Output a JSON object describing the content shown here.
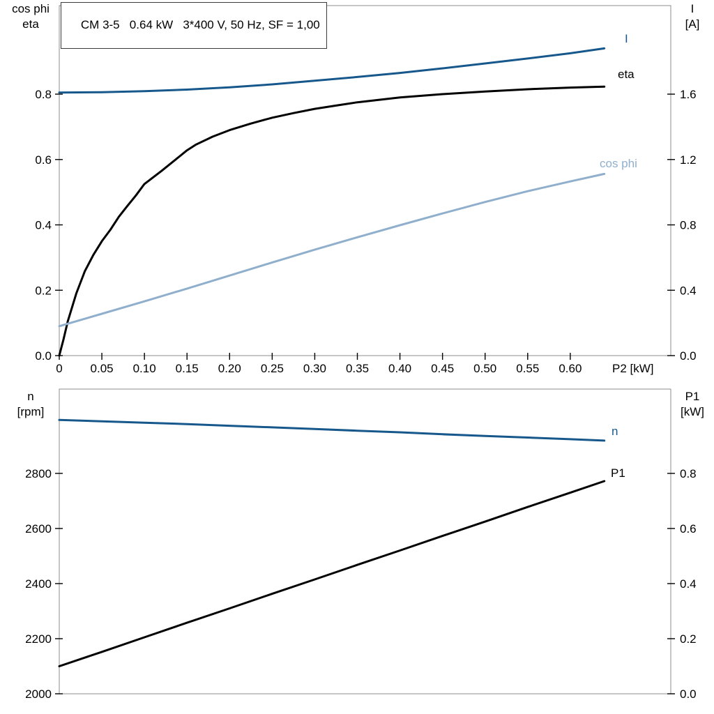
{
  "colors": {
    "dark_blue": "#17588c",
    "light_blue": "#8fafcc",
    "black": "#000000",
    "axis_border": "#8c8c8c",
    "tick": "#000000",
    "background": "#ffffff"
  },
  "chart_data": [
    {
      "type": "line",
      "title": "CM 3-5   0.64 kW   3*400 V, 50 Hz, SF = 1,00",
      "xlabel": "P2 [kW]",
      "xlim": [
        0,
        0.718
      ],
      "x_ticks": {
        "values": [
          0,
          0.05,
          0.1,
          0.15,
          0.2,
          0.25,
          0.3,
          0.35,
          0.4,
          0.45,
          0.5,
          0.55,
          0.6
        ],
        "labels": [
          "0",
          "0.05",
          "0.10",
          "0.15",
          "0.20",
          "0.25",
          "0.30",
          "0.35",
          "0.40",
          "0.45",
          "0.50",
          "0.55",
          "0.60"
        ]
      },
      "left_axis": {
        "label_lines": [
          "cos phi",
          "eta"
        ],
        "lim": [
          0,
          1.071
        ],
        "ticks": {
          "values": [
            0,
            0.2,
            0.4,
            0.6,
            0.8
          ],
          "labels": [
            "0.0",
            "0.2",
            "0.4",
            "0.6",
            "0.8"
          ]
        }
      },
      "right_axis": {
        "label_lines": [
          "I",
          "[A]"
        ],
        "lim": [
          0,
          2.142
        ],
        "ticks": {
          "values": [
            0,
            0.4,
            0.8,
            1.2,
            1.6
          ],
          "labels": [
            "0.0",
            "0.4",
            "0.8",
            "1.2",
            "1.6"
          ]
        }
      },
      "series": [
        {
          "name": "I",
          "axis": "right",
          "color": "dark_blue",
          "points": [
            [
              0,
              1.61
            ],
            [
              0.05,
              1.612
            ],
            [
              0.1,
              1.618
            ],
            [
              0.15,
              1.628
            ],
            [
              0.2,
              1.642
            ],
            [
              0.25,
              1.66
            ],
            [
              0.3,
              1.682
            ],
            [
              0.35,
              1.705
            ],
            [
              0.4,
              1.73
            ],
            [
              0.45,
              1.758
            ],
            [
              0.5,
              1.788
            ],
            [
              0.55,
              1.818
            ],
            [
              0.6,
              1.85
            ],
            [
              0.64,
              1.88
            ]
          ]
        },
        {
          "name": "eta",
          "axis": "left",
          "color": "black",
          "points": [
            [
              0,
              0
            ],
            [
              0.005,
              0.05
            ],
            [
              0.01,
              0.105
            ],
            [
              0.02,
              0.19
            ],
            [
              0.03,
              0.258
            ],
            [
              0.04,
              0.308
            ],
            [
              0.05,
              0.35
            ],
            [
              0.06,
              0.385
            ],
            [
              0.07,
              0.425
            ],
            [
              0.08,
              0.458
            ],
            [
              0.09,
              0.49
            ],
            [
              0.1,
              0.525
            ],
            [
              0.12,
              0.565
            ],
            [
              0.14,
              0.607
            ],
            [
              0.15,
              0.628
            ],
            [
              0.16,
              0.645
            ],
            [
              0.18,
              0.67
            ],
            [
              0.2,
              0.69
            ],
            [
              0.225,
              0.71
            ],
            [
              0.25,
              0.728
            ],
            [
              0.275,
              0.742
            ],
            [
              0.3,
              0.755
            ],
            [
              0.325,
              0.765
            ],
            [
              0.35,
              0.775
            ],
            [
              0.4,
              0.79
            ],
            [
              0.45,
              0.8
            ],
            [
              0.5,
              0.808
            ],
            [
              0.55,
              0.815
            ],
            [
              0.6,
              0.82
            ],
            [
              0.64,
              0.823
            ]
          ]
        },
        {
          "name": "cos phi",
          "axis": "left",
          "color": "light_blue",
          "points": [
            [
              0,
              0.09
            ],
            [
              0.05,
              0.128
            ],
            [
              0.1,
              0.166
            ],
            [
              0.15,
              0.205
            ],
            [
              0.2,
              0.245
            ],
            [
              0.25,
              0.285
            ],
            [
              0.3,
              0.324
            ],
            [
              0.35,
              0.362
            ],
            [
              0.4,
              0.399
            ],
            [
              0.45,
              0.435
            ],
            [
              0.5,
              0.47
            ],
            [
              0.55,
              0.503
            ],
            [
              0.6,
              0.533
            ],
            [
              0.64,
              0.556
            ]
          ]
        }
      ]
    },
    {
      "type": "line",
      "title": "",
      "xlabel": "",
      "xlim": [
        0,
        0.718
      ],
      "x_ticks": {
        "values": [],
        "labels": []
      },
      "left_axis": {
        "label_lines": [
          "n",
          "[rpm]"
        ],
        "lim": [
          2000,
          3106
        ],
        "ticks": {
          "values": [
            2000,
            2200,
            2400,
            2600,
            2800
          ],
          "labels": [
            "2000",
            "2200",
            "2400",
            "2600",
            "2800"
          ]
        }
      },
      "right_axis": {
        "label_lines": [
          "P1",
          "[kW]"
        ],
        "lim": [
          0,
          1.106
        ],
        "ticks": {
          "values": [
            0,
            0.2,
            0.4,
            0.6,
            0.8
          ],
          "labels": [
            "0.0",
            "0.2",
            "0.4",
            "0.6",
            "0.8"
          ]
        }
      },
      "series": [
        {
          "name": "n",
          "axis": "left",
          "color": "dark_blue",
          "points": [
            [
              0,
              2994
            ],
            [
              0.05,
              2989
            ],
            [
              0.1,
              2984
            ],
            [
              0.15,
              2979
            ],
            [
              0.2,
              2973
            ],
            [
              0.25,
              2967
            ],
            [
              0.3,
              2961
            ],
            [
              0.35,
              2955
            ],
            [
              0.4,
              2949
            ],
            [
              0.45,
              2942
            ],
            [
              0.5,
              2936
            ],
            [
              0.55,
              2930
            ],
            [
              0.6,
              2924
            ],
            [
              0.64,
              2919
            ]
          ]
        },
        {
          "name": "P1",
          "axis": "right",
          "color": "black",
          "points": [
            [
              0,
              0.1
            ],
            [
              0.05,
              0.152
            ],
            [
              0.1,
              0.205
            ],
            [
              0.15,
              0.258
            ],
            [
              0.2,
              0.31
            ],
            [
              0.25,
              0.363
            ],
            [
              0.3,
              0.415
            ],
            [
              0.35,
              0.468
            ],
            [
              0.4,
              0.52
            ],
            [
              0.45,
              0.573
            ],
            [
              0.5,
              0.625
            ],
            [
              0.55,
              0.678
            ],
            [
              0.6,
              0.73
            ],
            [
              0.64,
              0.772
            ]
          ]
        }
      ]
    }
  ]
}
